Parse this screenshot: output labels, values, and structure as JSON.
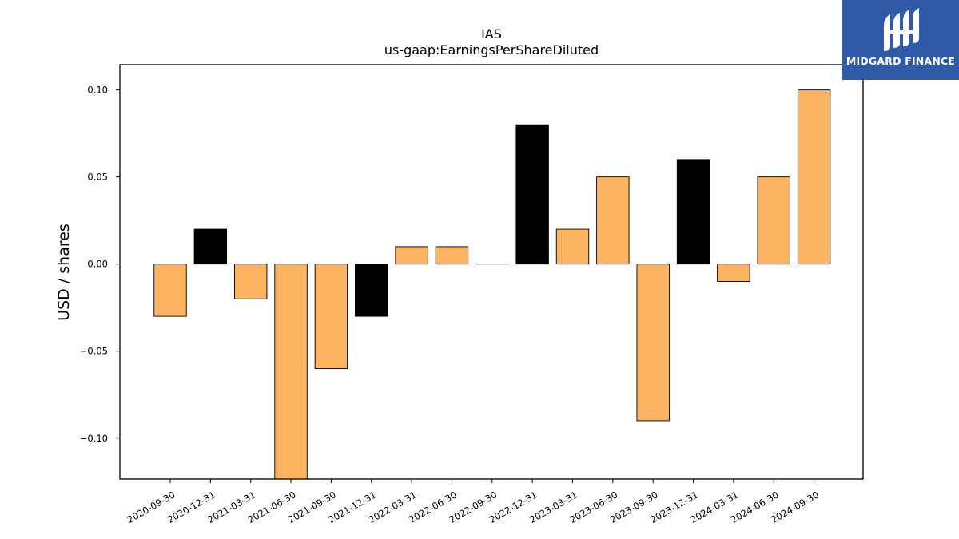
{
  "logo": {
    "text": "MIDGARD FINANCE"
  },
  "chart_data": {
    "type": "bar",
    "title": "IAS",
    "subtitle": "us-gaap:EarningsPerShareDiluted",
    "xlabel": "",
    "ylabel": "USD / shares",
    "ylim": [
      -0.1235,
      0.1145
    ],
    "yticks": [
      -0.1,
      -0.05,
      0.0,
      0.05,
      0.1
    ],
    "ytick_labels": [
      "−0.10",
      "−0.05",
      "0.00",
      "0.05",
      "0.10"
    ],
    "grid": false,
    "categories": [
      "2020-09-30",
      "2020-12-31",
      "2021-03-31",
      "2021-06-30",
      "2021-09-30",
      "2021-12-31",
      "2022-03-31",
      "2022-06-30",
      "2022-09-30",
      "2022-12-31",
      "2023-03-31",
      "2023-06-30",
      "2023-09-30",
      "2023-12-31",
      "2024-03-31",
      "2024-06-30",
      "2024-09-30"
    ],
    "values": [
      -0.03,
      0.02,
      -0.02,
      -0.13,
      -0.06,
      -0.03,
      0.01,
      0.01,
      0.0,
      0.08,
      0.02,
      0.05,
      -0.09,
      0.06,
      -0.01,
      0.05,
      0.1
    ],
    "bar_colors": [
      "#fdb462",
      "#000000",
      "#fdb462",
      "#fdb462",
      "#fdb462",
      "#000000",
      "#fdb462",
      "#fdb462",
      "#fdb462",
      "#000000",
      "#fdb462",
      "#fdb462",
      "#fdb462",
      "#000000",
      "#fdb462",
      "#fdb462",
      "#fdb462"
    ],
    "colors": {
      "quarter": "#fdb462",
      "year_end": "#000000",
      "edge": "#000000"
    }
  }
}
